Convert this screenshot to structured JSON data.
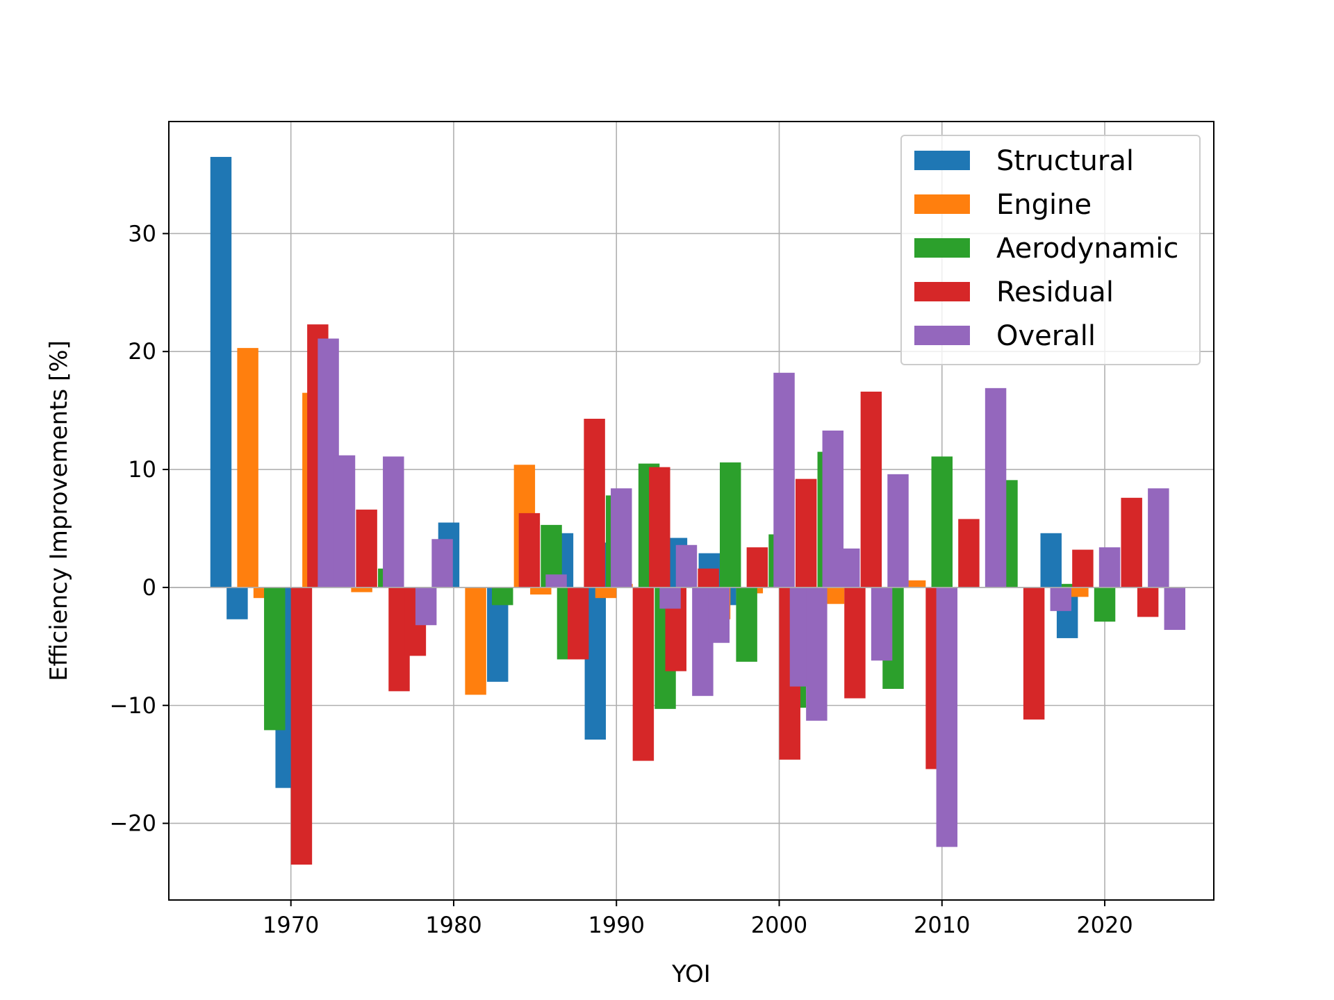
{
  "chart_data": {
    "type": "bar",
    "title": "",
    "xlabel": "YOI",
    "ylabel": "Efficiency Improvements [%]",
    "xlim": [
      1962.5,
      2026.7
    ],
    "ylim": [
      -26.5,
      39.5
    ],
    "xticks": [
      1970,
      1980,
      1990,
      2000,
      2010,
      2020
    ],
    "yticks": [
      -20,
      -10,
      0,
      10,
      20,
      30
    ],
    "ytick_labels": [
      "−20",
      "−10",
      "0",
      "10",
      "20",
      "30"
    ],
    "grid": true,
    "legend_position": "top-right",
    "bar_width": 1.3,
    "series": [
      {
        "name": "Structural",
        "color": "#1f77b4",
        "offset": -1.3,
        "x": [
          1967,
          1968,
          1971,
          1974,
          1981,
          1984,
          1988,
          1990,
          1991,
          1995,
          1997,
          1998,
          2018,
          2019
        ],
        "values": [
          36.5,
          -2.7,
          -17,
          8.8,
          5.5,
          -8,
          4.6,
          -12.9,
          3.8,
          4.2,
          2.9,
          -1.5,
          4.6,
          -4.3
        ]
      },
      {
        "name": "Engine",
        "color": "#ff7f0e",
        "offset": -0.65,
        "x": [
          1968,
          1969,
          1972,
          1975,
          1982,
          1985,
          1986,
          1990,
          1991,
          1997,
          1999,
          2004,
          2009,
          2019
        ],
        "values": [
          20.3,
          -0.9,
          16.5,
          -0.4,
          -9.1,
          10.4,
          -0.6,
          -0.9,
          0.3,
          -2.7,
          -0.5,
          -1.4,
          0.6,
          -0.8
        ]
      },
      {
        "name": "Aerodynamic",
        "color": "#2ca02c",
        "offset": 0,
        "x": [
          1969,
          1973,
          1976,
          1983,
          1986,
          1987,
          1990,
          1992,
          1993,
          1997,
          1998,
          2000,
          2001,
          2003,
          2007,
          2010,
          2014,
          2018,
          2020
        ],
        "values": [
          -12.1,
          5.1,
          1.6,
          -1.5,
          5.3,
          -6.1,
          7.8,
          10.5,
          -10.3,
          10.6,
          -6.3,
          4.5,
          -10.2,
          11.5,
          -8.6,
          11.1,
          9.1,
          0.3,
          -2.9
        ]
      },
      {
        "name": "Residual",
        "color": "#d62728",
        "offset": 0.65,
        "x": [
          1970,
          1971,
          1974,
          1976,
          1977,
          1984,
          1987,
          1988,
          1991,
          1992,
          1993,
          1995,
          1998,
          2000,
          2001,
          2004,
          2005,
          2009,
          2011,
          2015,
          2018,
          2021,
          2022
        ],
        "values": [
          -23.5,
          22.3,
          6.6,
          -8.8,
          -5.8,
          6.3,
          -6.1,
          14.3,
          -14.7,
          10.2,
          -7.1,
          1.6,
          3.4,
          -14.6,
          9.2,
          -9.4,
          16.6,
          -15.4,
          5.8,
          -11.2,
          3.2,
          7.6,
          -2.5
        ]
      },
      {
        "name": "Overall",
        "color": "#9467bd",
        "offset": 1.3,
        "x": [
          1971,
          1972,
          1975,
          1977,
          1978,
          1985,
          1989,
          1992,
          1993,
          1994,
          1995,
          1999,
          2000,
          2001,
          2002,
          2003,
          2005,
          2006,
          2009,
          2012,
          2016,
          2019,
          2022,
          2023
        ],
        "values": [
          21.1,
          11.2,
          11.1,
          -3.2,
          4.1,
          1.1,
          8.4,
          -1.8,
          3.6,
          -9.2,
          -4.7,
          18.2,
          -8.4,
          -11.3,
          13.3,
          3.3,
          -6.2,
          9.6,
          -22,
          16.9,
          -2,
          3.4,
          8.4,
          -3.6
        ]
      }
    ]
  }
}
